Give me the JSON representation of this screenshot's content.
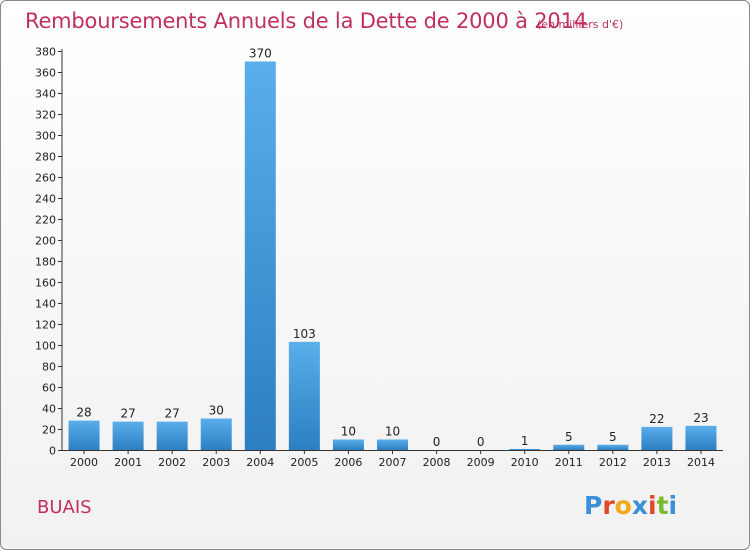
{
  "chart_data": {
    "type": "bar",
    "title": "Remboursements Annuels de la Dette de 2000 à 2014",
    "unit": "(en milliers d'€)",
    "categories": [
      "2000",
      "2001",
      "2002",
      "2003",
      "2004",
      "2005",
      "2006",
      "2007",
      "2008",
      "2009",
      "2010",
      "2011",
      "2012",
      "2013",
      "2014"
    ],
    "values": [
      28,
      27,
      27,
      30,
      370,
      103,
      10,
      10,
      0,
      0,
      1,
      5,
      5,
      22,
      23
    ],
    "ylim": [
      0,
      380
    ],
    "ytick_step": 20,
    "xlabel": "",
    "ylabel": "",
    "grid": false
  },
  "commune": "BUAIS",
  "logo": {
    "text": "Proxiti",
    "letter_colors": [
      "#3a8fd8",
      "#e0492c",
      "#f2a81d",
      "#3a8fd8",
      "#e0492c",
      "#7cbb2e",
      "#3a8fd8"
    ]
  },
  "colors": {
    "bar_light": "#5aaeea",
    "bar_dark": "#2c7fc2",
    "title": "#c0305a"
  }
}
